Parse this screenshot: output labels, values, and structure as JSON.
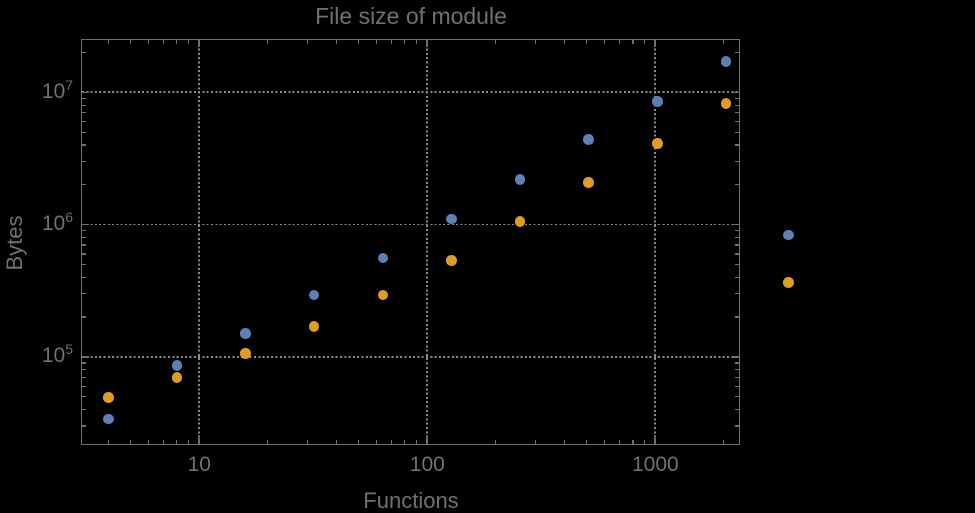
{
  "colors": {
    "background": "#000000",
    "frame": "#6f6f6f",
    "text": "#707070",
    "gridline": "#8a8a8a",
    "series_blue": "#5e81b5",
    "series_orange": "#e19c24"
  },
  "chart_data": {
    "type": "scatter",
    "title": "File size of module",
    "xlabel": "Functions",
    "ylabel": "Bytes",
    "x_scale": "log",
    "y_scale": "log",
    "x_range": [
      3.07,
      2320
    ],
    "y_range": [
      22200,
      24840000
    ],
    "grid": {
      "style": "dotted",
      "x_values": [
        10,
        100,
        1000
      ],
      "y_values": [
        100000,
        1000000,
        10000000
      ]
    },
    "x_major_ticks": [
      {
        "value": 10,
        "label": "10"
      },
      {
        "value": 100,
        "label": "100"
      },
      {
        "value": 1000,
        "label": "1000"
      }
    ],
    "y_major_ticks": [
      {
        "value": 100000,
        "base": "10",
        "exponent": "5"
      },
      {
        "value": 1000000,
        "base": "10",
        "exponent": "6"
      },
      {
        "value": 10000000,
        "base": "10",
        "exponent": "7"
      }
    ],
    "legend": null,
    "series": [
      {
        "name": "series-1-blue",
        "color": "#5e81b5",
        "points": [
          [
            4,
            34000
          ],
          [
            8,
            86000
          ],
          [
            16,
            151000
          ],
          [
            32,
            293000
          ],
          [
            64,
            560000
          ],
          [
            128,
            1100000
          ],
          [
            256,
            2200000
          ],
          [
            512,
            4390000
          ],
          [
            1024,
            8560000
          ],
          [
            2048,
            17000000
          ],
          [
            3850,
            836000
          ]
        ]
      },
      {
        "name": "series-2-orange",
        "color": "#e19c24",
        "points": [
          [
            4,
            49500
          ],
          [
            8,
            70000
          ],
          [
            16,
            106000
          ],
          [
            32,
            170000
          ],
          [
            64,
            293000
          ],
          [
            128,
            538000
          ],
          [
            256,
            1050000
          ],
          [
            512,
            2070000
          ],
          [
            1024,
            4090000
          ],
          [
            2048,
            8260000
          ],
          [
            3850,
            365000
          ]
        ]
      }
    ]
  }
}
